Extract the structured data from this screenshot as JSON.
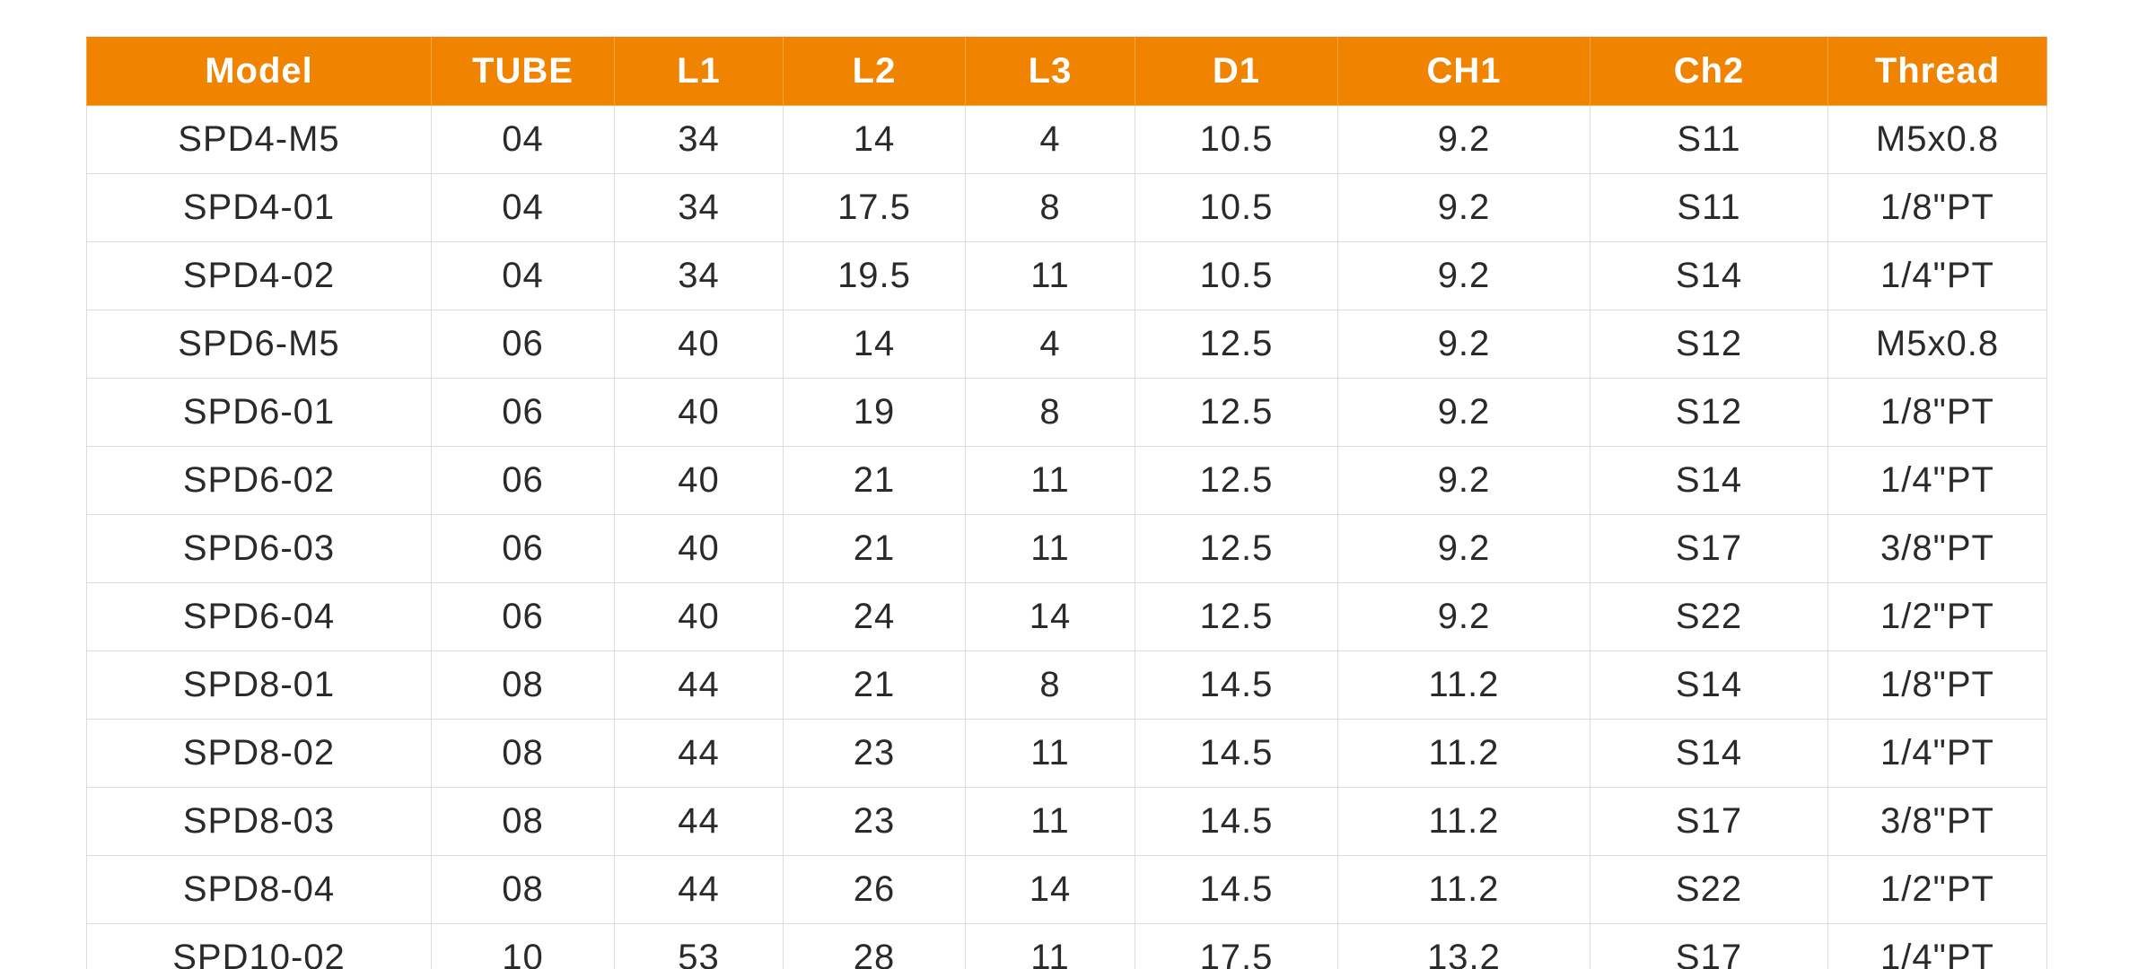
{
  "table": {
    "header": [
      "Model",
      "TUBE",
      "L1",
      "L2",
      "L3",
      "D1",
      "CH1",
      "Ch2",
      "Thread"
    ],
    "rows": [
      [
        "SPD4-M5",
        "04",
        "34",
        "14",
        "4",
        "10.5",
        "9.2",
        "S11",
        "M5x0.8"
      ],
      [
        "SPD4-01",
        "04",
        "34",
        "17.5",
        "8",
        "10.5",
        "9.2",
        "S11",
        "1/8\"PT"
      ],
      [
        "SPD4-02",
        "04",
        "34",
        "19.5",
        "11",
        "10.5",
        "9.2",
        "S14",
        "1/4\"PT"
      ],
      [
        "SPD6-M5",
        "06",
        "40",
        "14",
        "4",
        "12.5",
        "9.2",
        "S12",
        "M5x0.8"
      ],
      [
        "SPD6-01",
        "06",
        "40",
        "19",
        "8",
        "12.5",
        "9.2",
        "S12",
        "1/8\"PT"
      ],
      [
        "SPD6-02",
        "06",
        "40",
        "21",
        "11",
        "12.5",
        "9.2",
        "S14",
        "1/4\"PT"
      ],
      [
        "SPD6-03",
        "06",
        "40",
        "21",
        "11",
        "12.5",
        "9.2",
        "S17",
        "3/8\"PT"
      ],
      [
        "SPD6-04",
        "06",
        "40",
        "24",
        "14",
        "12.5",
        "9.2",
        "S22",
        "1/2\"PT"
      ],
      [
        "SPD8-01",
        "08",
        "44",
        "21",
        "8",
        "14.5",
        "11.2",
        "S14",
        "1/8\"PT"
      ],
      [
        "SPD8-02",
        "08",
        "44",
        "23",
        "11",
        "14.5",
        "11.2",
        "S14",
        "1/4\"PT"
      ],
      [
        "SPD8-03",
        "08",
        "44",
        "23",
        "11",
        "14.5",
        "11.2",
        "S17",
        "3/8\"PT"
      ],
      [
        "SPD8-04",
        "08",
        "44",
        "26",
        "14",
        "14.5",
        "11.2",
        "S22",
        "1/2\"PT"
      ],
      [
        "SPD10-02",
        "10",
        "53",
        "28",
        "11",
        "17.5",
        "13.2",
        "S17",
        "1/4\"PT"
      ]
    ]
  }
}
